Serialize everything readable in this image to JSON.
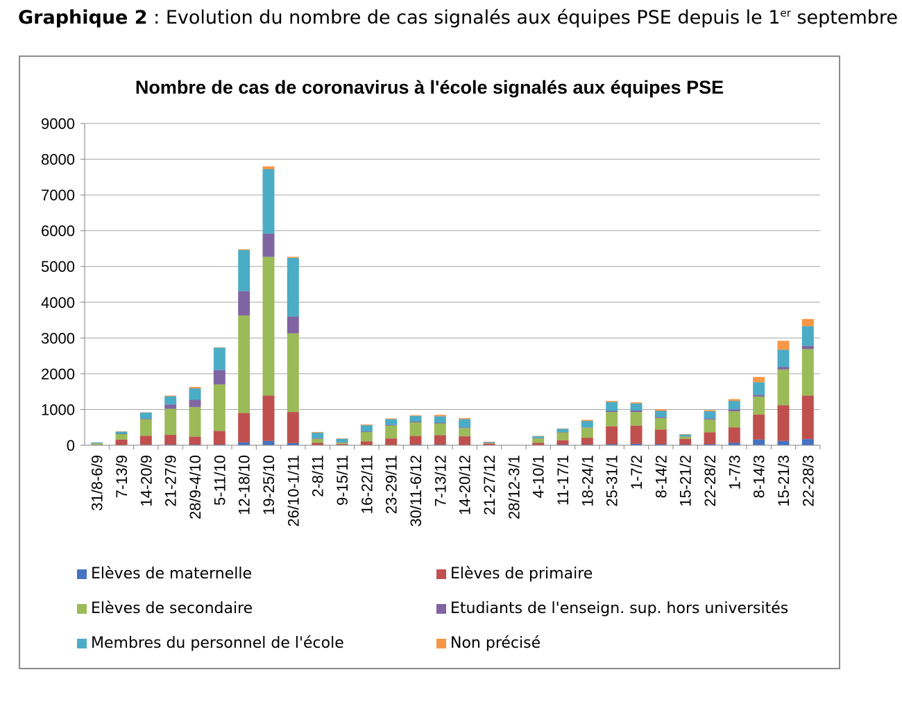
{
  "caption": {
    "prefix": "Graphique 2",
    "separator": " : ",
    "text": "Evolution du nombre de cas signalés aux équipes PSE depuis le 1",
    "sup": "er",
    "suffix": " septembre"
  },
  "chart_data": {
    "type": "bar",
    "stacked": true,
    "title": "Nombre de cas de coronavirus à l'école signalés aux équipes PSE",
    "xlabel": "",
    "ylabel": "",
    "ylim": [
      0,
      9000
    ],
    "yticks": [
      0,
      1000,
      2000,
      3000,
      4000,
      5000,
      6000,
      7000,
      8000,
      9000
    ],
    "grid": true,
    "legend_position": "bottom",
    "categories": [
      "31/8-6/9",
      "7-13/9",
      "14-20/9",
      "21-27/9",
      "28/9-4/10",
      "5-11/10",
      "12-18/10",
      "19-25/10",
      "26/10-1/11",
      "2-8/11",
      "9-15/11",
      "16-22/11",
      "23-29/11",
      "30/11-6/12",
      "7-13/12",
      "14-20/12",
      "21-27/12",
      "28/12-3/1",
      "4-10/1",
      "11-17/1",
      "18-24/1",
      "25-31/1",
      "1-7/2",
      "8-14/2",
      "15-21/2",
      "22-28/2",
      "1-7/3",
      "8-14/3",
      "15-21/3",
      "22-28/3"
    ],
    "series": [
      {
        "name": "Elèves de maternelle",
        "color": "#4472c4",
        "values": [
          5,
          10,
          15,
          20,
          20,
          20,
          80,
          120,
          60,
          10,
          5,
          10,
          10,
          20,
          20,
          10,
          5,
          0,
          10,
          20,
          20,
          30,
          40,
          30,
          20,
          30,
          70,
          160,
          120,
          170
        ]
      },
      {
        "name": "Elèves de primaire",
        "color": "#c0504d",
        "values": [
          10,
          150,
          250,
          270,
          220,
          380,
          820,
          1270,
          870,
          60,
          30,
          100,
          180,
          240,
          260,
          240,
          40,
          0,
          60,
          120,
          190,
          500,
          510,
          410,
          160,
          330,
          430,
          700,
          1000,
          1220
        ]
      },
      {
        "name": "Elèves de secondaire",
        "color": "#9bbb59",
        "values": [
          40,
          150,
          460,
          730,
          830,
          1300,
          2730,
          3880,
          2200,
          110,
          40,
          260,
          360,
          380,
          330,
          230,
          20,
          0,
          120,
          220,
          280,
          400,
          380,
          320,
          60,
          360,
          450,
          500,
          1000,
          1300
        ]
      },
      {
        "name": "Etudiants de l'enseign. sup. hors universités",
        "color": "#8064a2",
        "values": [
          0,
          10,
          20,
          120,
          200,
          400,
          680,
          650,
          470,
          20,
          10,
          20,
          20,
          20,
          20,
          20,
          5,
          0,
          10,
          10,
          10,
          30,
          40,
          30,
          10,
          30,
          50,
          50,
          70,
          90
        ]
      },
      {
        "name": "Membres du personnel de l'école",
        "color": "#4bacc6",
        "values": [
          25,
          60,
          170,
          230,
          320,
          630,
          1150,
          1800,
          1640,
          150,
          100,
          170,
          160,
          160,
          180,
          230,
          20,
          0,
          50,
          90,
          180,
          250,
          200,
          170,
          50,
          200,
          240,
          350,
          480,
          550
        ]
      },
      {
        "name": "Non précisé",
        "color": "#f79646",
        "values": [
          0,
          10,
          5,
          20,
          40,
          10,
          20,
          80,
          30,
          20,
          5,
          20,
          20,
          20,
          40,
          30,
          10,
          0,
          10,
          10,
          30,
          30,
          30,
          40,
          10,
          30,
          50,
          150,
          250,
          200
        ]
      }
    ]
  },
  "colors": {
    "frame_border": "#8c8c8c",
    "gridline": "#a6a6a6",
    "axis": "#808080"
  }
}
